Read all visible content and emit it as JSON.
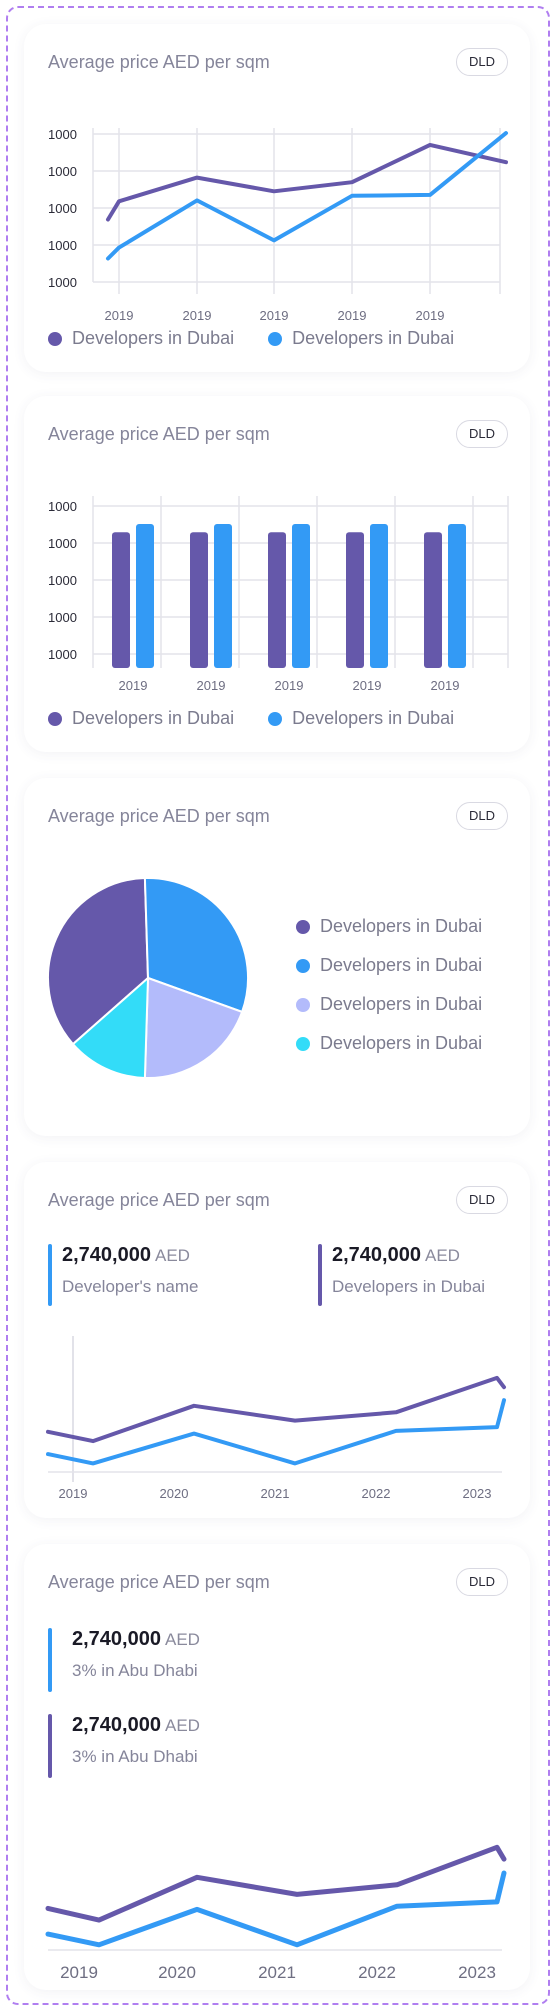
{
  "colors": {
    "purple": "#6558aa",
    "blue": "#339af5",
    "lavender": "#b3bbfb",
    "cyan": "#33dcf8"
  },
  "chart_data": [
    {
      "type": "line",
      "title": "Average price AED per sqm",
      "badge": "DLD",
      "categories": [
        "2019",
        "2019",
        "2019",
        "2019",
        "2019"
      ],
      "y_tick_labels": [
        "1000",
        "1000",
        "1000",
        "1000",
        "1000"
      ],
      "series": [
        {
          "name": "Developers in Dubai",
          "color": "#6558aa",
          "values": [
            63,
            89,
            74,
            84,
            125
          ]
        },
        {
          "name": "Developers in Dubai",
          "color": "#339af5",
          "values": [
            12,
            64,
            20,
            69,
            70
          ]
        }
      ],
      "series_ends": {
        "start": [
          43,
          0
        ],
        "end": [
          106,
          138
        ]
      },
      "ylim": [
        -50,
        170
      ],
      "grid": true,
      "legend": "bottom"
    },
    {
      "type": "bar",
      "title": "Average price AED per sqm",
      "badge": "DLD",
      "categories": [
        "2019",
        "2019",
        "2019",
        "2019",
        "2019"
      ],
      "y_tick_labels": [
        "1000",
        "1000",
        "1000",
        "1000",
        "1000"
      ],
      "series": [
        {
          "name": "Developers in Dubai",
          "color": "#6558aa",
          "values": [
            132,
            132,
            132,
            132,
            132
          ]
        },
        {
          "name": "Developers in Dubai",
          "color": "#339af5",
          "values": [
            140,
            140,
            140,
            140,
            140
          ]
        }
      ],
      "ylim": [
        0,
        175
      ],
      "grid": true,
      "legend": "bottom"
    },
    {
      "type": "pie",
      "title": "Average price AED per sqm",
      "badge": "DLD",
      "slices": [
        {
          "name": "Developers in Dubai",
          "color": "#6558aa",
          "value": 36
        },
        {
          "name": "Developers in Dubai",
          "color": "#339af5",
          "value": 31
        },
        {
          "name": "Developers in Dubai",
          "color": "#b3bbfb",
          "value": 20
        },
        {
          "name": "Developers in Dubai",
          "color": "#33dcf8",
          "value": 13
        }
      ],
      "legend": "right"
    },
    {
      "type": "line",
      "title": "Average price AED per sqm",
      "badge": "DLD",
      "categories": [
        "2019",
        "2020",
        "2021",
        "2022",
        "2023"
      ],
      "stats": [
        {
          "value": "2,740,000",
          "unit": "AED",
          "label": "Developer's name",
          "color": "#339af5"
        },
        {
          "value": "2,740,000",
          "unit": "AED",
          "label": "Developers in Dubai",
          "color": "#6558aa"
        }
      ],
      "series": [
        {
          "color": "#6558aa",
          "values": [
            57,
            95,
            79,
            88,
            125
          ]
        },
        {
          "color": "#339af5",
          "values": [
            33,
            65,
            33,
            68,
            72
          ]
        }
      ],
      "series_ends": {
        "start": [
          67,
          43
        ],
        "end": [
          115,
          101
        ]
      },
      "ylim": [
        0,
        140
      ],
      "grid": false
    },
    {
      "type": "line",
      "title": "Average price AED per sqm",
      "badge": "DLD",
      "categories": [
        "2019",
        "2020",
        "2021",
        "2022",
        "2023"
      ],
      "stats": [
        {
          "value": "2,740,000",
          "unit": "AED",
          "label": "3% in Abu Dhabi",
          "color": "#339af5"
        },
        {
          "value": "2,740,000",
          "unit": "AED",
          "label": "3% in Abu Dhabi",
          "color": "#6558aa"
        }
      ],
      "series": [
        {
          "color": "#6558aa",
          "values": [
            54,
            94,
            78,
            87,
            122
          ]
        },
        {
          "color": "#339af5",
          "values": [
            31,
            64,
            31,
            67,
            71
          ]
        }
      ],
      "series_ends": {
        "start": [
          65,
          41
        ],
        "end": [
          111,
          98
        ]
      },
      "ylim": [
        0,
        140
      ],
      "grid": false
    }
  ]
}
